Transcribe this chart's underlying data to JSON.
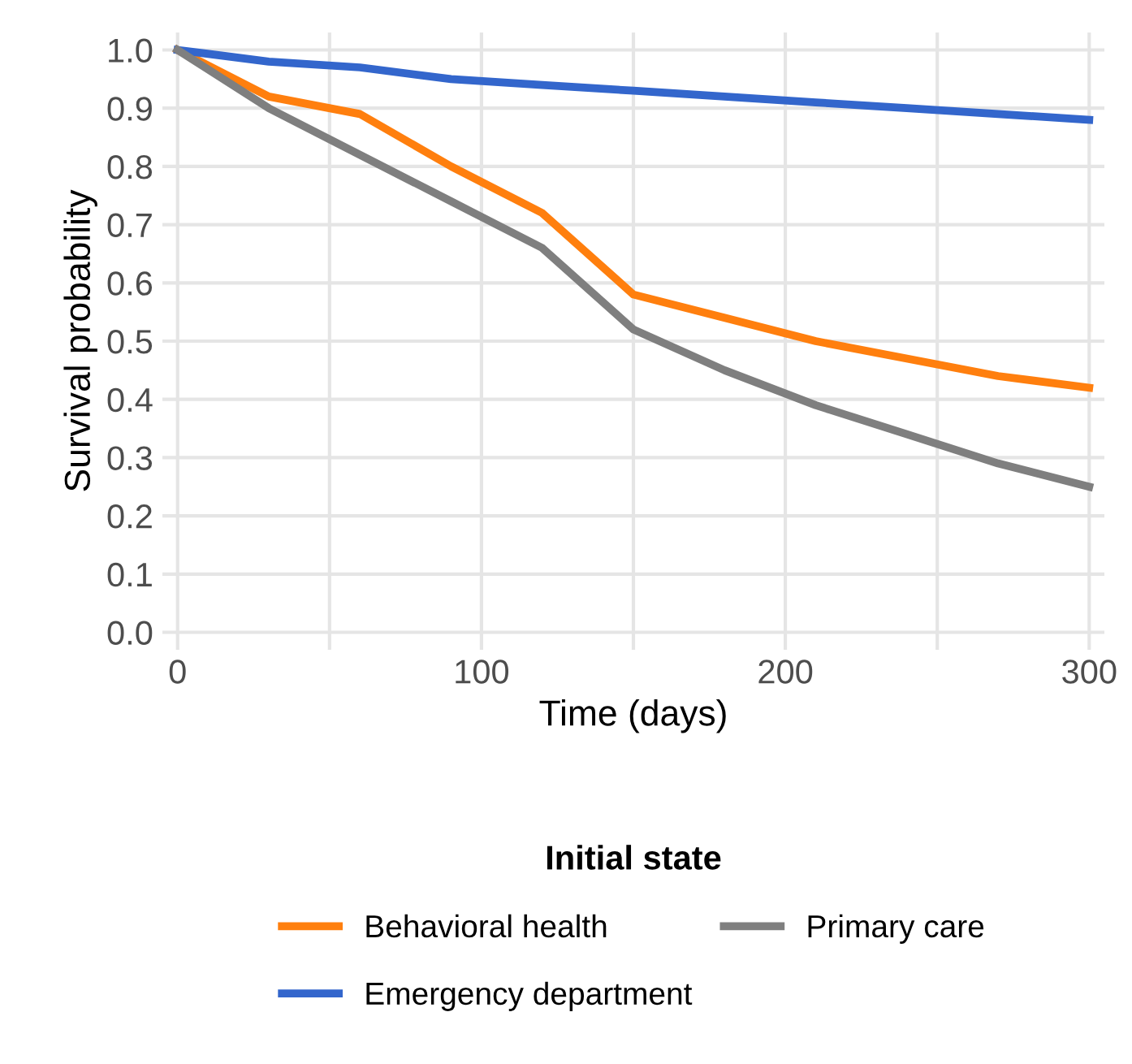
{
  "chart_data": {
    "type": "line",
    "xlabel": "Time (days)",
    "ylabel": "Survival probability",
    "legend_title": "Initial state",
    "legend": "bottom",
    "grid": true,
    "marker": "none",
    "line_style": "solid",
    "xlim": [
      -5,
      305
    ],
    "ylim": [
      -0.03,
      1.03
    ],
    "xticks": [
      0,
      {
        "value": 50,
        "label": null
      },
      100,
      {
        "value": 150,
        "label": null
      },
      200,
      {
        "value": 250,
        "label": null
      },
      300
    ],
    "yticks": [
      {
        "value": 0,
        "label": "0.0"
      },
      0.1,
      0.2,
      0.3,
      0.4,
      0.5,
      0.6,
      0.7,
      0.8,
      0.9,
      {
        "value": 1,
        "label": "1.0"
      }
    ],
    "x": [
      0,
      30,
      60,
      90,
      120,
      150,
      180,
      210,
      240,
      270,
      300
    ],
    "series": [
      {
        "name": "Behavioral health",
        "color": "#ff7f0e",
        "values": [
          1.0,
          0.92,
          0.89,
          0.8,
          0.72,
          0.58,
          0.54,
          0.5,
          0.47,
          0.44,
          0.42
        ]
      },
      {
        "name": "Emergency department",
        "color": "#3366cc",
        "values": [
          1.0,
          0.98,
          0.97,
          0.95,
          0.94,
          0.93,
          0.92,
          0.91,
          0.9,
          0.89,
          0.88
        ]
      },
      {
        "name": "Primary care",
        "color": "#7f7f7f",
        "values": [
          1.0,
          0.9,
          0.82,
          0.74,
          0.66,
          0.52,
          0.45,
          0.39,
          0.34,
          0.29,
          0.25
        ]
      }
    ]
  }
}
